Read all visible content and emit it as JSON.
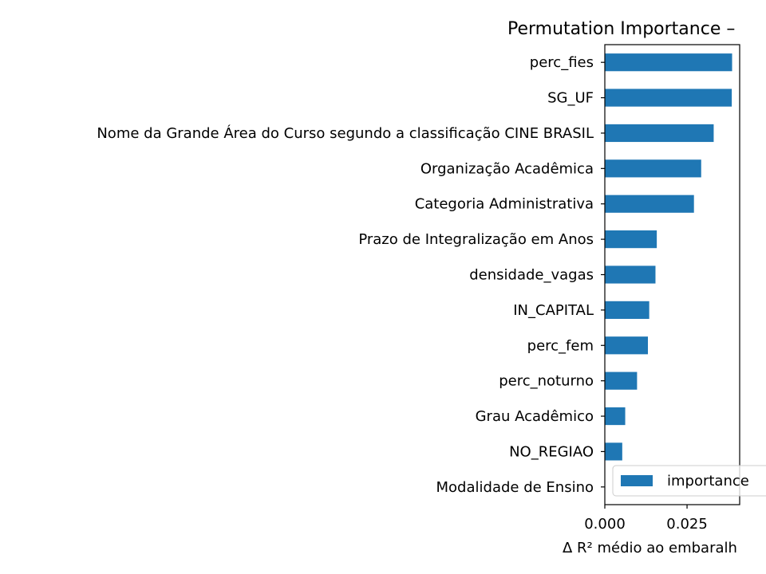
{
  "chart_data": {
    "type": "bar",
    "orientation": "horizontal",
    "title": "Permutation Importance –",
    "xlabel": "Δ R² médio ao embaralh",
    "ylabel": "",
    "categories": [
      "perc_fies",
      "SG_UF",
      "Nome da Grande Área do Curso segundo a classificação CINE BRASIL",
      "Organização Acadêmica",
      "Categoria Administrativa",
      "Prazo de Integralização em Anos",
      "densidade_vagas",
      "IN_CAPITAL",
      "perc_fem",
      "perc_noturno",
      "Grau Acadêmico",
      "NO_REGIAO",
      "Modalidade de Ensino"
    ],
    "series": [
      {
        "name": "importance",
        "values": [
          0.0387,
          0.0386,
          0.0331,
          0.0293,
          0.0271,
          0.0158,
          0.0154,
          0.0135,
          0.0131,
          0.0098,
          0.0062,
          0.0053,
          0.0
        ]
      }
    ],
    "xlim": [
      0.0,
      0.041
    ],
    "xticks": [
      0.0,
      0.025
    ],
    "xtick_labels": [
      "0.000",
      "0.025"
    ],
    "bar_color": "#1f77b4",
    "legend": {
      "placement": "lower-right",
      "entries": [
        "importance"
      ]
    },
    "grid": false
  }
}
